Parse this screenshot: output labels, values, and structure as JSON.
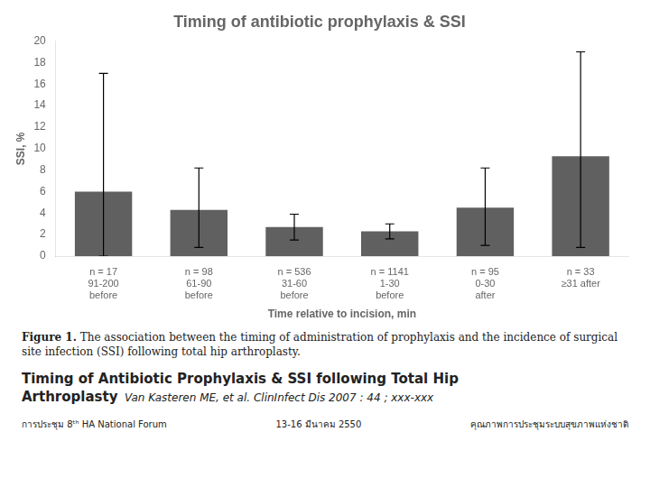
{
  "chart_data": {
    "type": "bar",
    "title": "Timing of antibiotic prophylaxis & SSI",
    "categories": [
      "91-200\nbefore",
      "61-90\nbefore",
      "31-60\nbefore",
      "1-30\nbefore",
      "0-30\nafter",
      "≥31 after"
    ],
    "n_labels": [
      "n = 17",
      "n = 98",
      "n = 536",
      "n = 1141",
      "n = 95",
      "n = 33"
    ],
    "values": [
      6.0,
      4.3,
      2.7,
      2.3,
      4.5,
      9.3
    ],
    "error_lower": [
      0.0,
      0.8,
      1.5,
      1.6,
      1.0,
      0.8
    ],
    "error_upper": [
      17.0,
      8.2,
      3.9,
      3.0,
      8.2,
      19.0
    ],
    "color": "#606060",
    "xlabel": "Time relative to incision, min",
    "ylabel": "SSI, %",
    "ylim": [
      0,
      20
    ],
    "yticks": [
      0,
      2,
      4,
      6,
      8,
      10,
      12,
      14,
      16,
      18,
      20
    ],
    "grid": false,
    "annotations": [
      "Figure 1.",
      "  The association between the timing of administration of prophylaxis and the incidence of surgical site infection (SSI) following total hip arthroplasty.",
      "Timing of Antibiotic Prophylaxis & SSI following Total Hip",
      "Arthroplasty",
      "  Van Kasteren ME, et al. ClinInfect Dis 2007 : 44 ; xxx-xxx",
      "การประชุม 8ᵗʰ HA National Forum",
      "13-16 มีนาคม 2550",
      "คุณภาพการประชุมระบบสุขภาพแห่งชาติ"
    ]
  }
}
